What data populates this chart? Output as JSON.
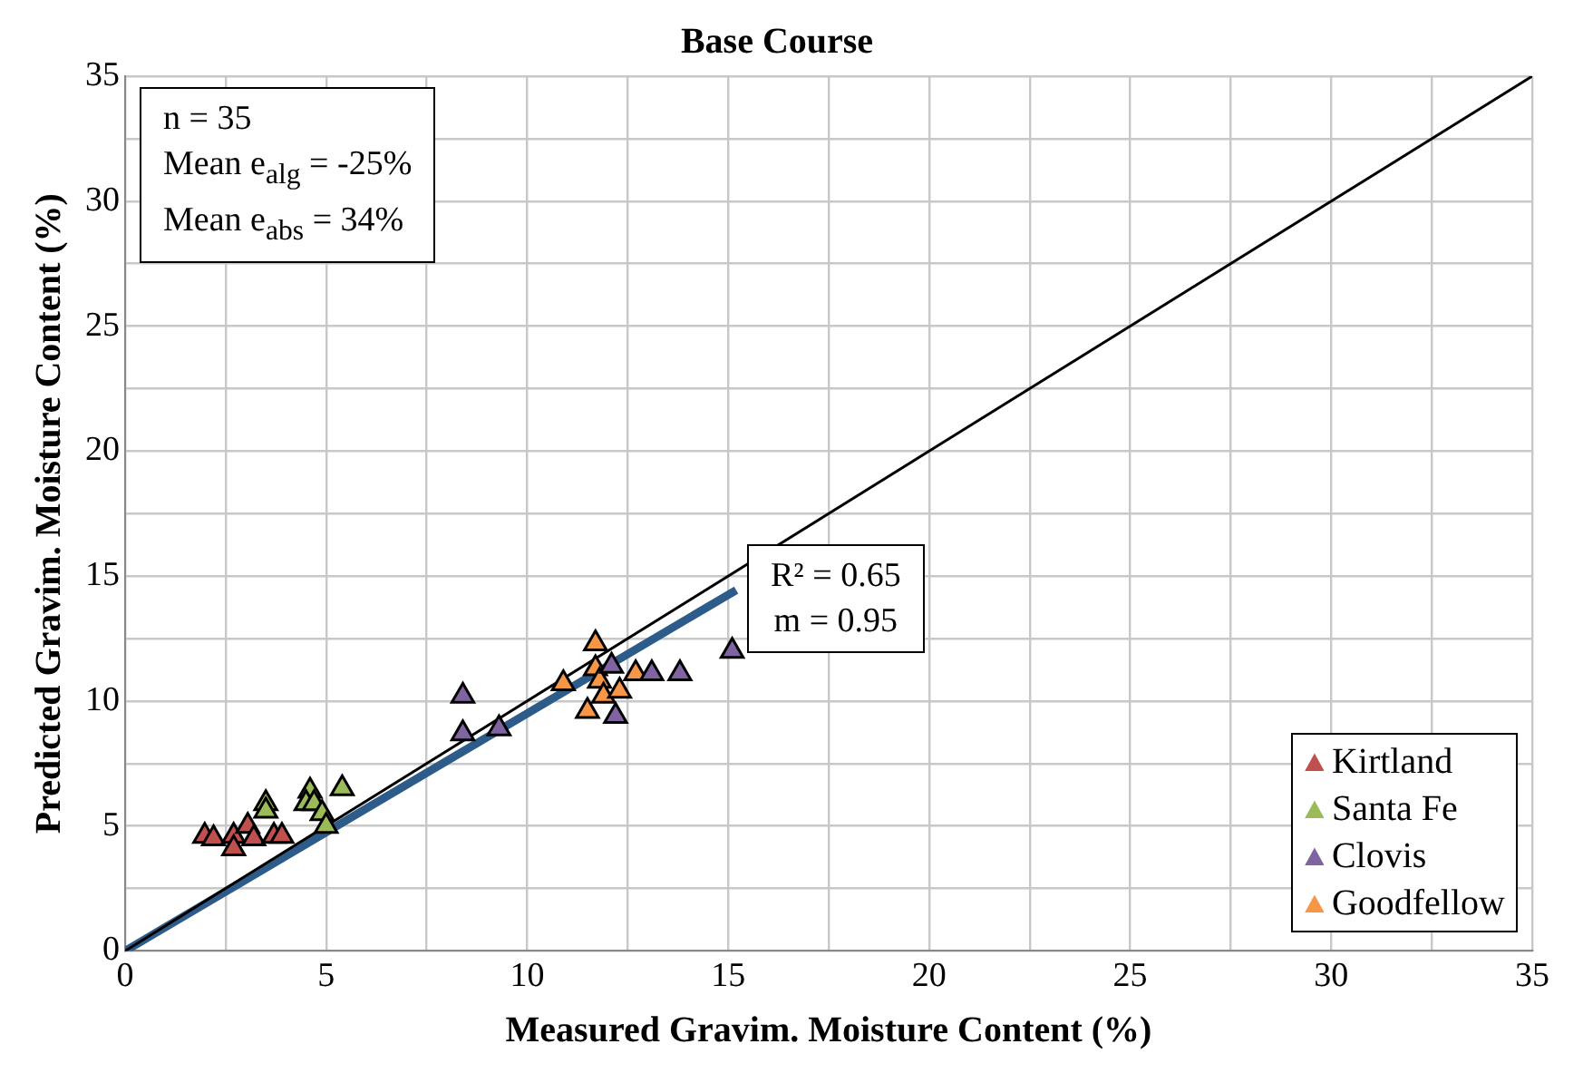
{
  "chart_data": {
    "type": "scatter",
    "title": "Base Course",
    "xlabel": "Measured Gravim. Moisture Content (%)",
    "ylabel": "Predicted Gravim. Moisture Content (%)",
    "xlim": [
      0,
      35
    ],
    "ylim": [
      0,
      35
    ],
    "xticks": [
      0,
      {
        "value": 2.5,
        "label": null
      },
      5,
      {
        "value": 7.5,
        "label": null
      },
      10,
      {
        "value": 12.5,
        "label": null
      },
      15,
      {
        "value": 17.5,
        "label": null
      },
      20,
      {
        "value": 22.5,
        "label": null
      },
      25,
      {
        "value": 27.5,
        "label": null
      },
      30,
      {
        "value": 32.5,
        "label": null
      },
      35
    ],
    "yticks": [
      0,
      {
        "value": 2.5,
        "label": null
      },
      5,
      {
        "value": 7.5,
        "label": null
      },
      10,
      {
        "value": 12.5,
        "label": null
      },
      15,
      {
        "value": 17.5,
        "label": null
      },
      20,
      {
        "value": 22.5,
        "label": null
      },
      25,
      {
        "value": 27.5,
        "label": null
      },
      30,
      {
        "value": 32.5,
        "label": null
      },
      35
    ],
    "grid": true,
    "legend": "bottom right",
    "marker": "triangle",
    "series": [
      {
        "name": "Kirtland",
        "color": "#c0504d",
        "x": [
          1.98,
          2.2,
          2.7,
          2.7,
          3.05,
          3.2,
          3.7,
          3.9
        ],
        "values": [
          4.6,
          4.5,
          4.6,
          4.1,
          5.0,
          4.5,
          4.6,
          4.6
        ]
      },
      {
        "name": "Santa Fe",
        "color": "#9bbb59",
        "x": [
          3.5,
          3.5,
          4.6,
          4.5,
          4.7,
          4.9,
          5.0,
          5.4
        ],
        "values": [
          5.9,
          5.6,
          6.4,
          5.9,
          5.9,
          5.5,
          5.0,
          6.5
        ]
      },
      {
        "name": "Clovis",
        "color": "#8064a2",
        "x": [
          8.4,
          8.4,
          9.3,
          12.2,
          13.1,
          13.8,
          15.1,
          12.1
        ],
        "values": [
          10.2,
          8.7,
          8.9,
          9.4,
          11.1,
          11.1,
          12.0,
          11.4
        ]
      },
      {
        "name": "Goodfellow",
        "color": "#f79646",
        "x": [
          11.7,
          10.9,
          11.7,
          11.8,
          11.9,
          12.3,
          11.5,
          12.7
        ],
        "values": [
          12.3,
          10.7,
          11.3,
          10.8,
          10.2,
          10.4,
          9.6,
          11.1
        ]
      },
      {
        "type": "line",
        "color": "#000000",
        "x": [
          0,
          35
        ],
        "values": [
          0,
          35
        ],
        "marker": "none"
      },
      {
        "type": "line",
        "color": "#2e5c8a",
        "x": [
          0,
          15.2
        ],
        "values": [
          0,
          14.44
        ],
        "marker": "none"
      }
    ],
    "annotations": [
      "n = 35\nMean e$_{alg}$ = -25%\nMean e$_{abs}$ = 34%",
      {
        "text": "R² = 0.65\nm = 0.95",
        "x": 15.2,
        "y": 14.44
      }
    ]
  }
}
